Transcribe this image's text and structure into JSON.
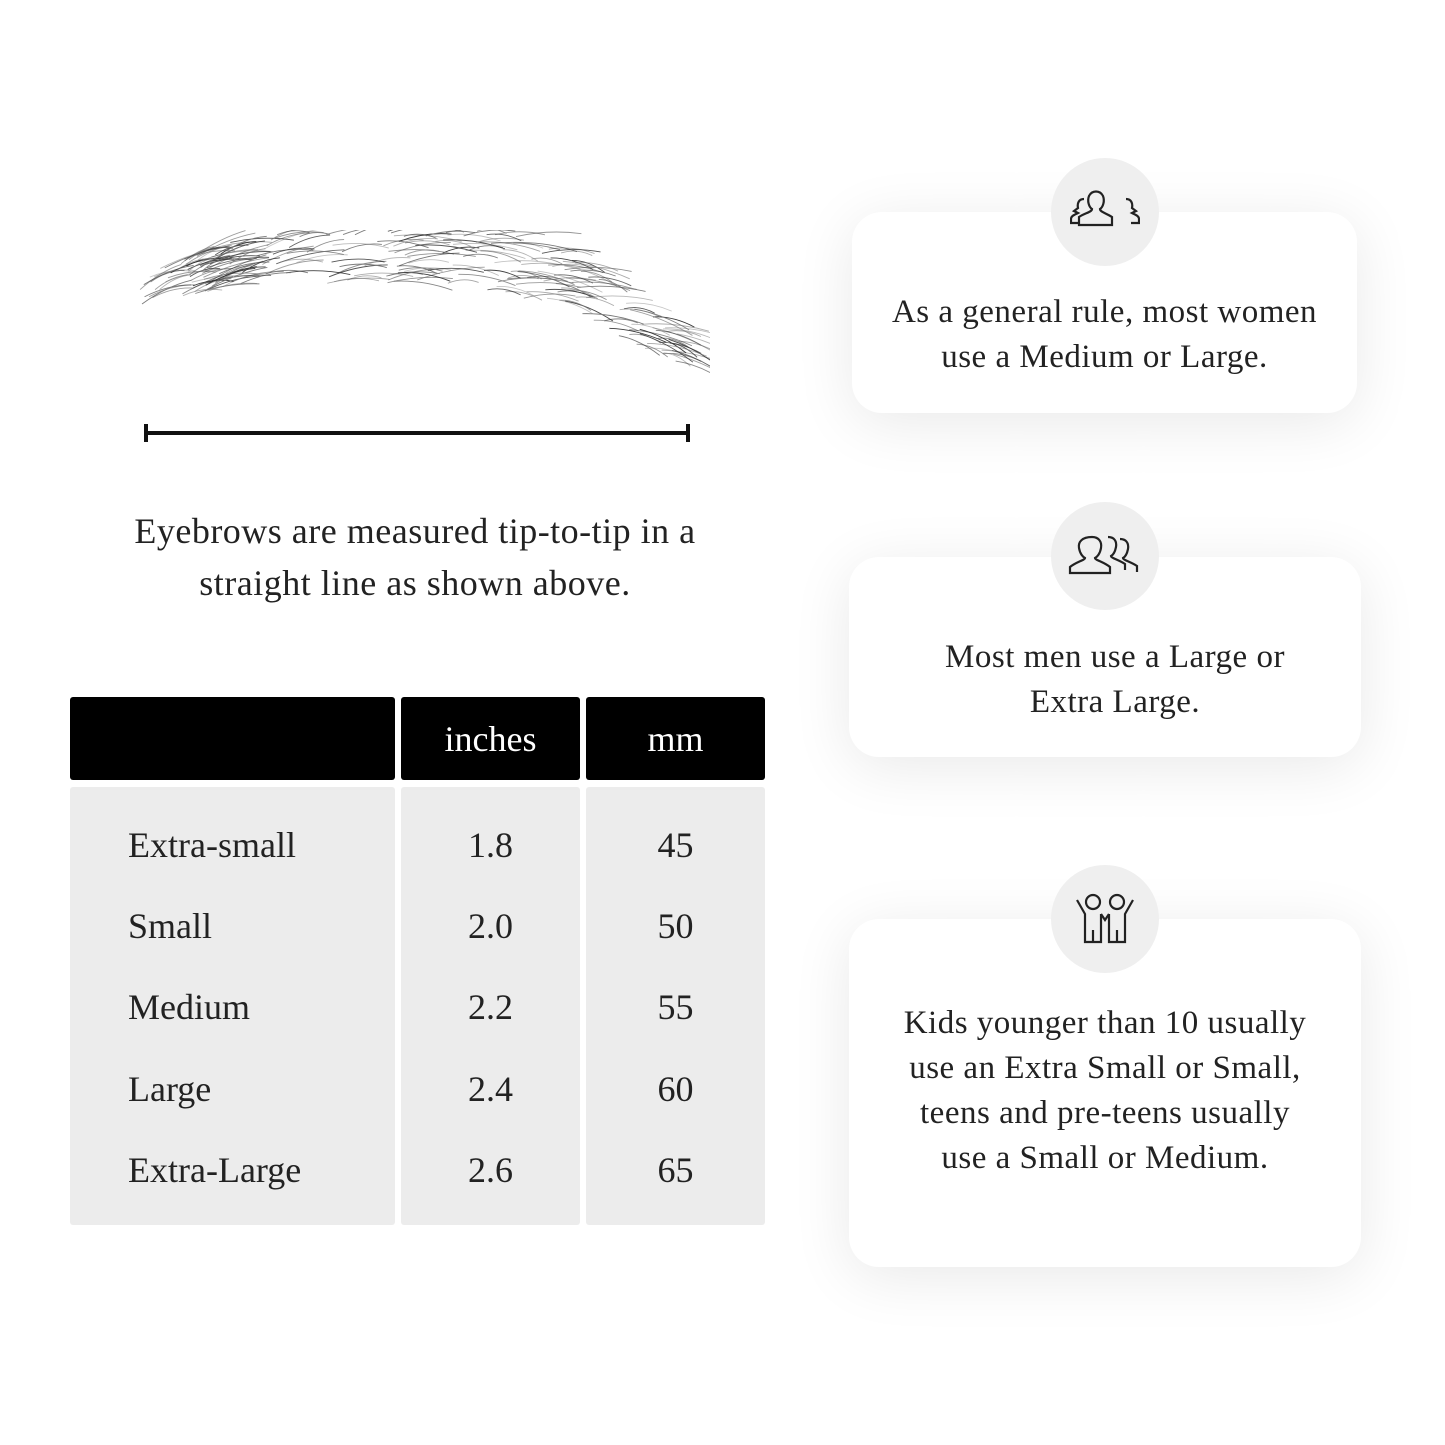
{
  "measure_caption": "Eyebrows are measured tip-to-tip in a straight line as shown above.",
  "table": {
    "headers": [
      "",
      "inches",
      "mm"
    ],
    "rows": [
      {
        "size": "Extra-small",
        "inches": "1.8",
        "mm": "45"
      },
      {
        "size": "Small",
        "inches": "2.0",
        "mm": "50"
      },
      {
        "size": "Medium",
        "inches": "2.2",
        "mm": "55"
      },
      {
        "size": "Large",
        "inches": "2.4",
        "mm": "60"
      },
      {
        "size": "Extra-Large",
        "inches": "2.6",
        "mm": "65"
      }
    ]
  },
  "cards": [
    {
      "icon": "women-group-icon",
      "text": "As a general rule, most women use a Medium or Large."
    },
    {
      "icon": "men-group-icon",
      "text": "Most men use a Large or Extra Large."
    },
    {
      "icon": "kids-icon",
      "text": "Kids younger than 10 usually use an Extra Small or Small, teens and pre-teens usually use a Small or Medium."
    }
  ],
  "colors": {
    "header_bg": "#000000",
    "cell_bg": "#ececec",
    "icon_circle": "#efefef"
  }
}
